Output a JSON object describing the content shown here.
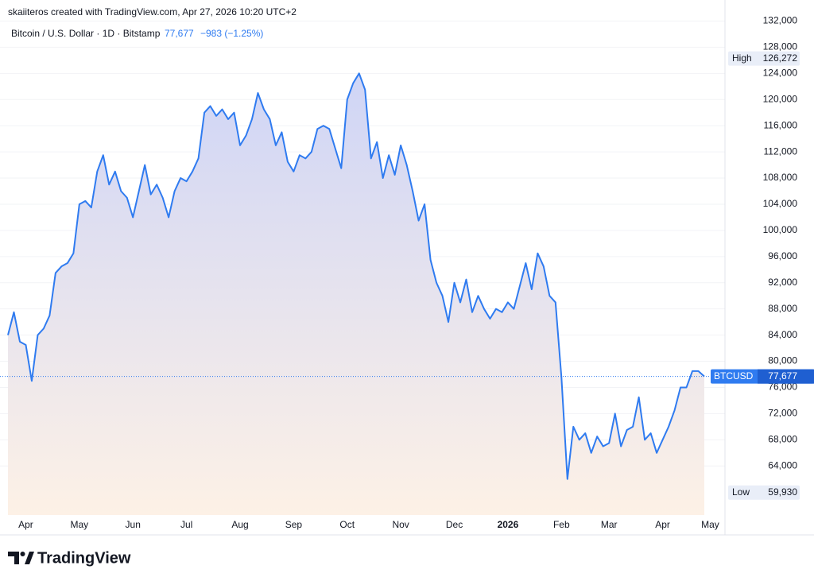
{
  "header": {
    "credit": "skaiiteros created with TradingView.com, Apr 27, 2026 10:20 UTC+2",
    "symbol": "Bitcoin / U.S. Dollar · 1D · Bitstamp",
    "change": "−983 (−1.25%)"
  },
  "footer": {
    "brand": "TradingView"
  },
  "chart_data": {
    "type": "area",
    "categories": [
      null,
      null,
      null,
      "Apr",
      null,
      null,
      null,
      null,
      null,
      null,
      null,
      null,
      "May",
      null,
      null,
      null,
      null,
      null,
      null,
      null,
      null,
      "Jun",
      null,
      null,
      null,
      null,
      null,
      null,
      null,
      null,
      "Jul",
      null,
      null,
      null,
      null,
      null,
      null,
      null,
      null,
      "Aug",
      null,
      null,
      null,
      null,
      null,
      null,
      null,
      null,
      "Sep",
      null,
      null,
      null,
      null,
      null,
      null,
      null,
      null,
      "Oct",
      null,
      null,
      null,
      null,
      null,
      null,
      null,
      null,
      "Nov",
      null,
      null,
      null,
      null,
      null,
      null,
      null,
      null,
      "Dec",
      null,
      null,
      null,
      null,
      null,
      null,
      null,
      null,
      "2026",
      null,
      null,
      null,
      null,
      null,
      null,
      null,
      null,
      "Feb",
      null,
      null,
      null,
      null,
      null,
      null,
      null,
      "Mar",
      null,
      null,
      null,
      null,
      null,
      null,
      null,
      null,
      "Apr",
      null,
      null,
      null,
      null,
      null,
      null,
      null,
      "May"
    ],
    "series": [
      {
        "name": "BTCUSD",
        "color": "#2f7bf0",
        "values": [
          84000,
          87500,
          83000,
          82500,
          77000,
          84000,
          85000,
          87000,
          93500,
          94500,
          95000,
          96500,
          104000,
          104500,
          103500,
          109000,
          111500,
          107000,
          109000,
          106000,
          105000,
          102000,
          106000,
          110000,
          105500,
          107000,
          105000,
          102000,
          106000,
          108000,
          107500,
          109000,
          111000,
          118000,
          119000,
          117500,
          118500,
          117000,
          118000,
          113000,
          114500,
          117000,
          121000,
          118500,
          117000,
          113000,
          115000,
          110500,
          109000,
          111500,
          111000,
          112000,
          115500,
          116000,
          115500,
          112500,
          109500,
          120000,
          122500,
          124000,
          121500,
          111000,
          113500,
          108000,
          111500,
          108500,
          113000,
          110000,
          106000,
          101500,
          104000,
          95500,
          92000,
          90000,
          86000,
          92000,
          89000,
          92500,
          87500,
          90000,
          88000,
          86500,
          88000,
          87500,
          89000,
          88000,
          91500,
          95000,
          91000,
          96500,
          94500,
          90000,
          89000,
          77500,
          62000,
          70000,
          68000,
          69000,
          66000,
          68500,
          67000,
          67500,
          72000,
          67000,
          69500,
          70000,
          74500,
          68000,
          69000,
          66000,
          68000,
          70000,
          72500,
          76000,
          76000,
          78500,
          78500,
          77677,
          null
        ]
      }
    ],
    "last_price": {
      "value": 77677,
      "label": "77,677"
    },
    "high": {
      "name": "High",
      "value": 126272,
      "label": "126,272"
    },
    "low": {
      "name": "Low",
      "value": 59930,
      "label": "59,930"
    },
    "ylim": [
      56500,
      134000
    ],
    "yticks": [
      {
        "value": 64000,
        "label": "64,000"
      },
      {
        "value": 68000,
        "label": "68,000"
      },
      {
        "value": 72000,
        "label": "72,000"
      },
      {
        "value": 76000,
        "label": "76,000"
      },
      {
        "value": 80000,
        "label": "80,000"
      },
      {
        "value": 84000,
        "label": "84,000"
      },
      {
        "value": 88000,
        "label": "88,000"
      },
      {
        "value": 92000,
        "label": "92,000"
      },
      {
        "value": 96000,
        "label": "96,000"
      },
      {
        "value": 100000,
        "label": "100,000"
      },
      {
        "value": 104000,
        "label": "104,000"
      },
      {
        "value": 108000,
        "label": "108,000"
      },
      {
        "value": 112000,
        "label": "112,000"
      },
      {
        "value": 116000,
        "label": "116,000"
      },
      {
        "value": 120000,
        "label": "120,000"
      },
      {
        "value": 124000,
        "label": "124,000"
      },
      {
        "value": 128000,
        "label": "128,000"
      },
      {
        "value": 132000,
        "label": "132,000"
      }
    ],
    "grid": true
  }
}
